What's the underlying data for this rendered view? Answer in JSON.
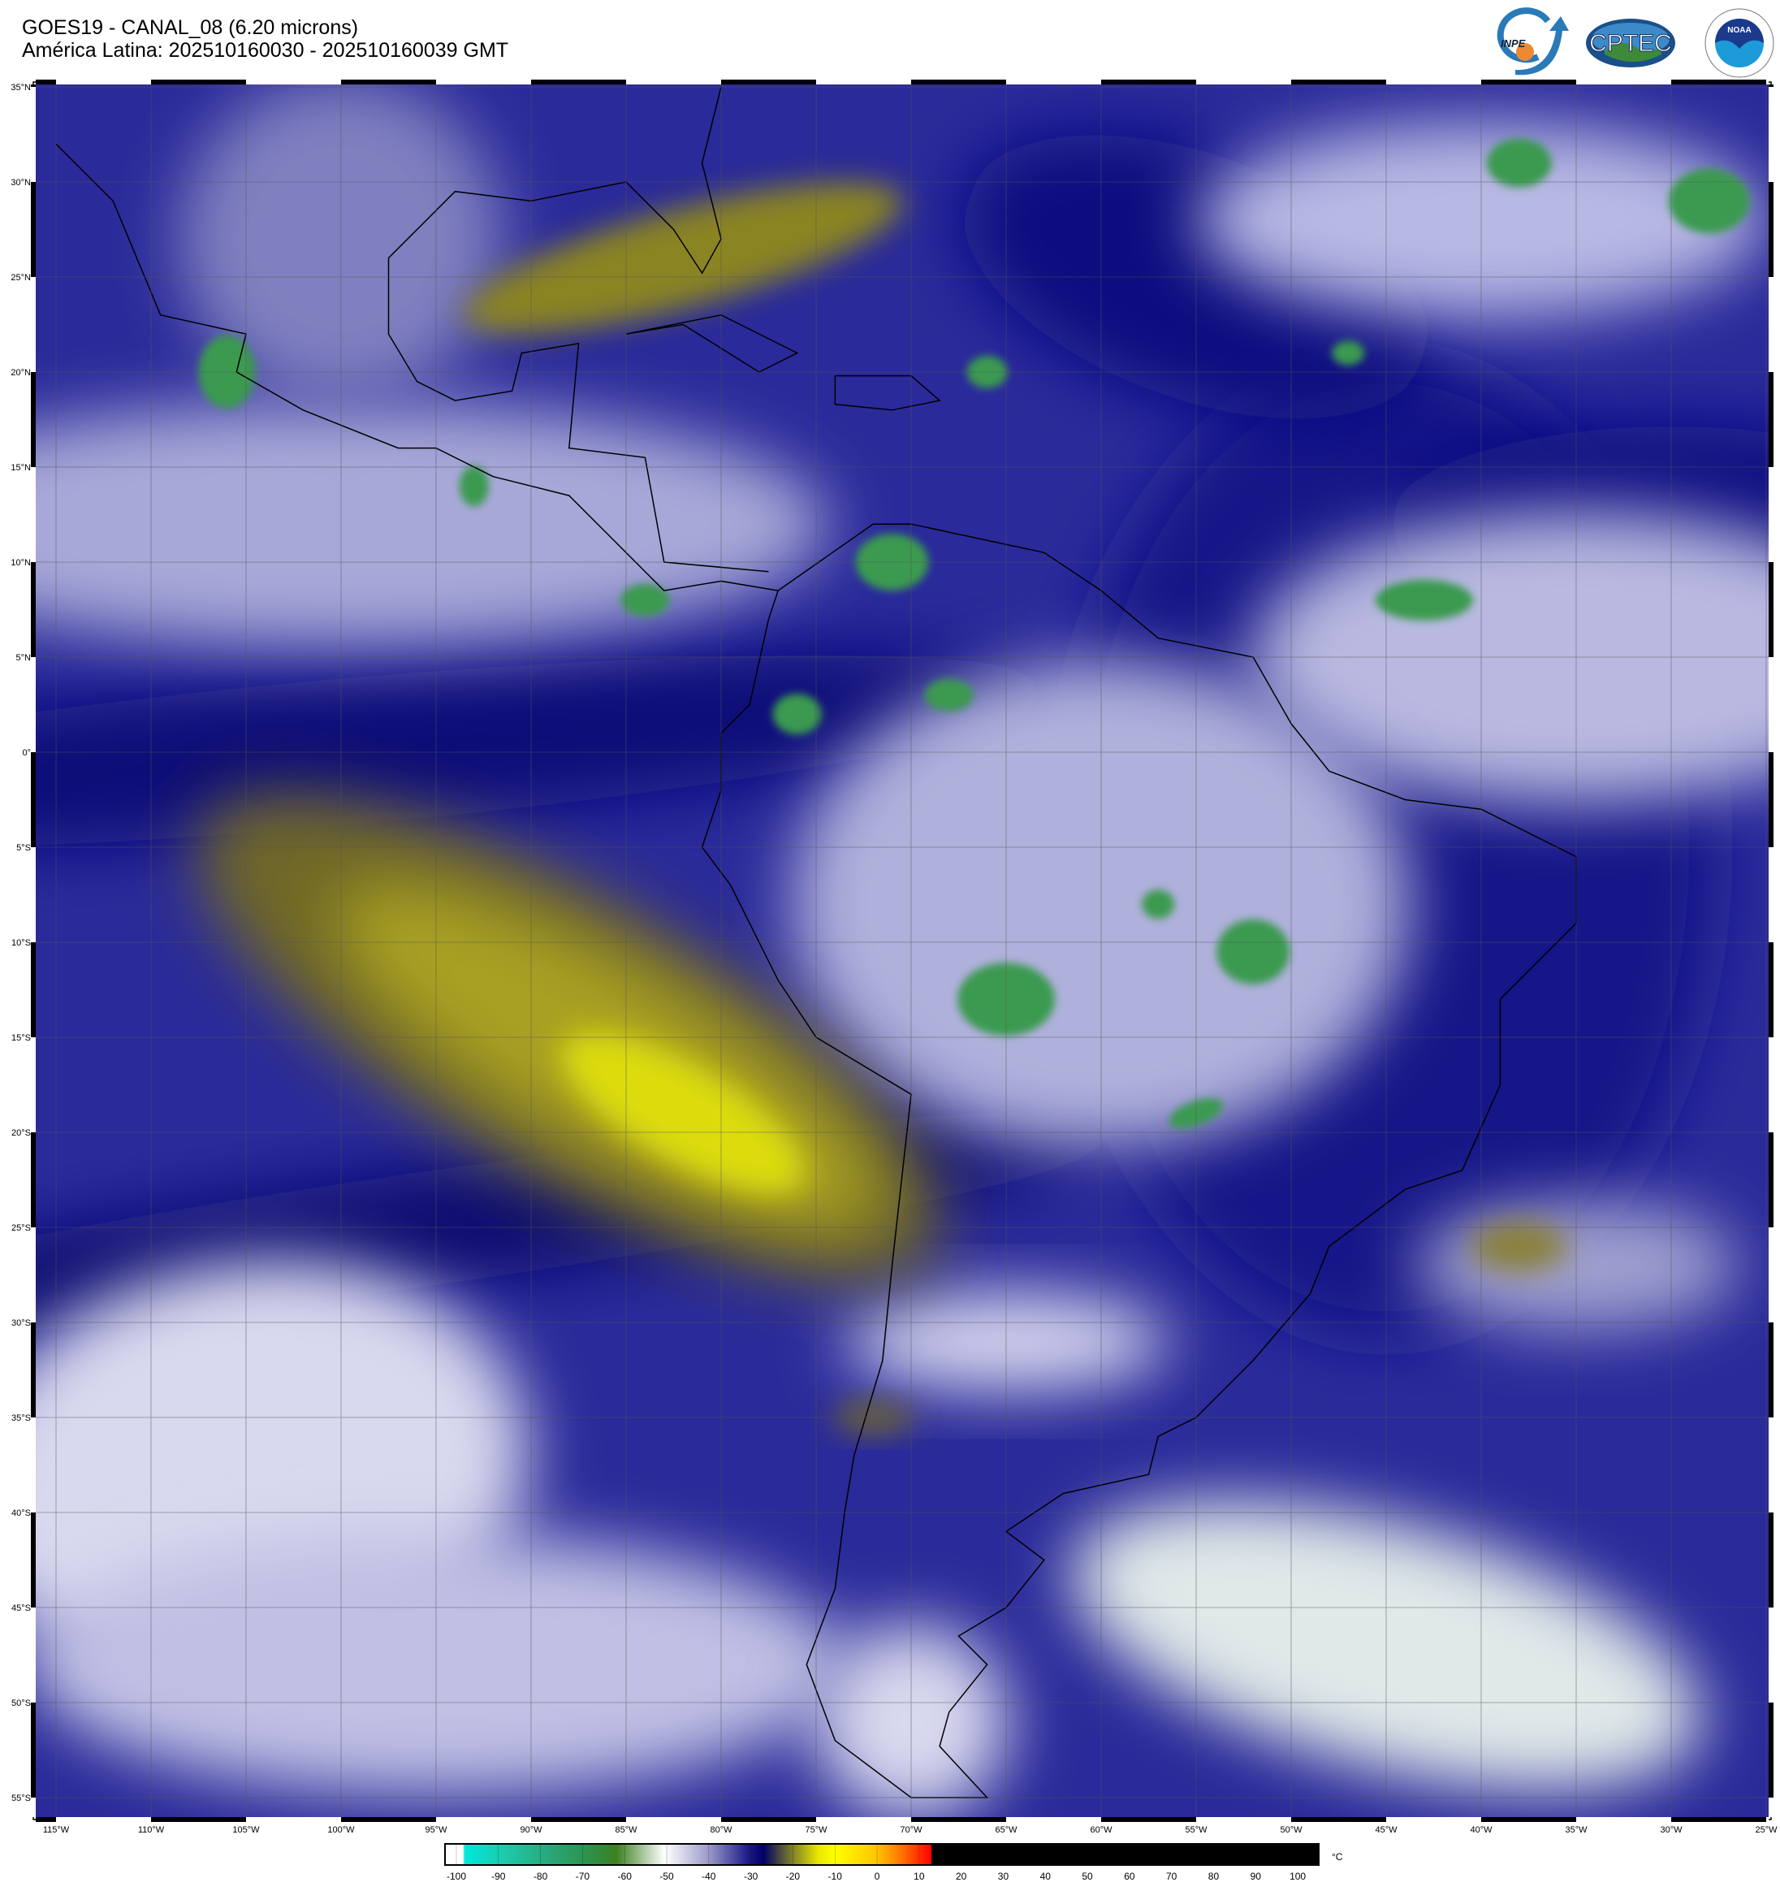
{
  "header": {
    "title_line1": "GOES19 - CANAL_08 (6.20 microns)",
    "title_line2": "América Latina: 202510160030 - 202510160039 GMT"
  },
  "logos": {
    "inpe": "INPE",
    "cptec": "CPTEC",
    "noaa": "NOAA",
    "noaa_ring": "NATIONAL OCEANIC AND ATMOSPHERIC ADMINISTRATION · U.S. DEPARTMENT OF COMMERCE"
  },
  "map": {
    "lat_labels": [
      "35°N",
      "30°N",
      "25°N",
      "20°N",
      "15°N",
      "10°N",
      "5°N",
      "0°",
      "5°S",
      "10°S",
      "15°S",
      "20°S",
      "25°S",
      "30°S",
      "35°S",
      "40°S",
      "45°S",
      "50°S",
      "55°S"
    ],
    "lon_labels": [
      "115°W",
      "110°W",
      "105°W",
      "100°W",
      "95°W",
      "90°W",
      "85°W",
      "80°W",
      "75°W",
      "70°W",
      "65°W",
      "60°W",
      "55°W",
      "50°W",
      "45°W",
      "40°W",
      "35°W",
      "30°W",
      "25°W"
    ],
    "lat_range": [
      -56.1,
      35.2
    ],
    "lon_range": [
      -116.1,
      -24.9
    ],
    "gridlines": true
  },
  "colorbar": {
    "unit": "°C",
    "tick_labels": [
      "-100",
      "-90",
      "-80",
      "-70",
      "-60",
      "-50",
      "-40",
      "-30",
      "-20",
      "-10",
      "0",
      "10",
      "20",
      "30",
      "40",
      "50",
      "60",
      "70",
      "80",
      "90",
      "100"
    ],
    "range": [
      -102.7,
      105
    ],
    "stops": [
      {
        "value": -102.7,
        "color": "#ffffff"
      },
      {
        "value": -98.5,
        "color": "#ffffff"
      },
      {
        "value": -98,
        "color": "#00e8dc"
      },
      {
        "value": -88,
        "color": "#1ec8a8"
      },
      {
        "value": -78,
        "color": "#28a87a"
      },
      {
        "value": -68,
        "color": "#2e9048"
      },
      {
        "value": -62,
        "color": "#3c8020"
      },
      {
        "value": -50.5,
        "color": "#ffffff"
      },
      {
        "value": -40,
        "color": "#9a9ac8"
      },
      {
        "value": -31,
        "color": "#20208a"
      },
      {
        "value": -27,
        "color": "#000064"
      },
      {
        "value": -21,
        "color": "#707030"
      },
      {
        "value": -14,
        "color": "#e8e800"
      },
      {
        "value": -10,
        "color": "#ffff00"
      },
      {
        "value": 0,
        "color": "#ffc400"
      },
      {
        "value": 6,
        "color": "#ff7000"
      },
      {
        "value": 12.9,
        "color": "#ff0000"
      },
      {
        "value": 13,
        "color": "#000000"
      },
      {
        "value": 105,
        "color": "#000000"
      }
    ]
  }
}
